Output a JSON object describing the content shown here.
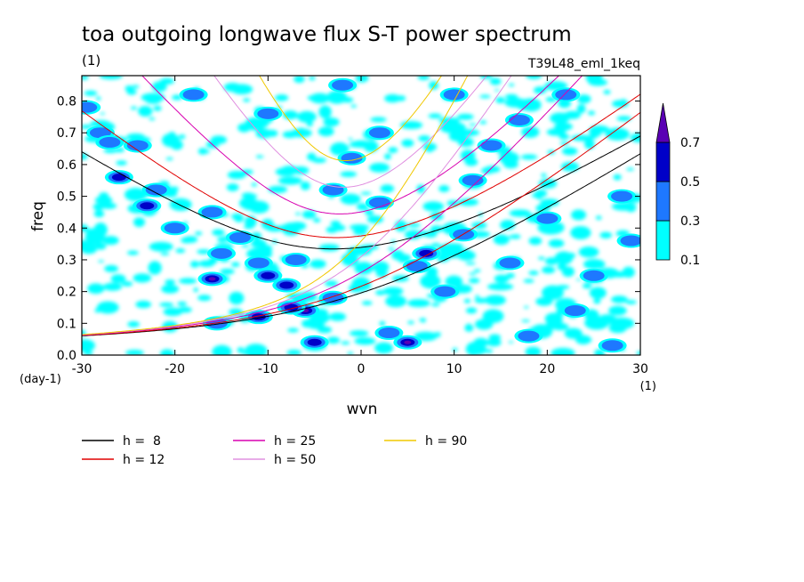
{
  "chart_data": {
    "type": "heatmap",
    "title": "toa outgoing longwave flux S-T power spectrum",
    "subtitle_left": "(1)",
    "subtitle_right": "T39L48_eml_1keq",
    "xlabel": "wvn",
    "ylabel": "freq",
    "x_unit": "(1)",
    "y_unit": "(day-1)",
    "xlim": [
      -30,
      30
    ],
    "ylim": [
      0,
      0.88
    ],
    "x_ticks": [
      -30,
      -20,
      -10,
      0,
      10,
      20,
      30
    ],
    "x_tick_labels": [
      "-30",
      "-20",
      "-10",
      "0",
      "10",
      "20",
      "30"
    ],
    "y_ticks": [
      0,
      0.1,
      0.2,
      0.3,
      0.4,
      0.5,
      0.6,
      0.7,
      0.8
    ],
    "y_tick_labels": [
      "0.0",
      "0.1",
      "0.2",
      "0.3",
      "0.4",
      "0.5",
      "0.6",
      "0.7",
      "0.8"
    ],
    "colorbar": {
      "levels": [
        0.1,
        0.3,
        0.5,
        0.7
      ],
      "labels": [
        "0.1",
        "0.3",
        "0.5",
        "0.7"
      ],
      "colors": [
        "#00ffff",
        "#1e78ff",
        "#0000c8",
        "#5a00b4"
      ],
      "extend": "max"
    },
    "blobs": [
      {
        "x": -29.5,
        "y": 0.78,
        "level": 1
      },
      {
        "x": -28,
        "y": 0.7,
        "level": 1
      },
      {
        "x": -27,
        "y": 0.67,
        "level": 1
      },
      {
        "x": -26,
        "y": 0.56,
        "level": 2
      },
      {
        "x": -24,
        "y": 0.66,
        "level": 1
      },
      {
        "x": -23,
        "y": 0.47,
        "level": 2
      },
      {
        "x": -22,
        "y": 0.52,
        "level": 1
      },
      {
        "x": -20,
        "y": 0.4,
        "level": 1
      },
      {
        "x": -16,
        "y": 0.45,
        "level": 1
      },
      {
        "x": -16,
        "y": 0.24,
        "level": 3
      },
      {
        "x": -15,
        "y": 0.32,
        "level": 1
      },
      {
        "x": -15.5,
        "y": 0.1,
        "level": 1
      },
      {
        "x": -13,
        "y": 0.37,
        "level": 1
      },
      {
        "x": -11,
        "y": 0.29,
        "level": 1
      },
      {
        "x": -10,
        "y": 0.25,
        "level": 2
      },
      {
        "x": -8,
        "y": 0.22,
        "level": 2
      },
      {
        "x": -7,
        "y": 0.3,
        "level": 1
      },
      {
        "x": -6,
        "y": 0.14,
        "level": 3
      },
      {
        "x": -7.5,
        "y": 0.15,
        "level": 2
      },
      {
        "x": -11,
        "y": 0.12,
        "level": 2
      },
      {
        "x": -5,
        "y": 0.04,
        "level": 2
      },
      {
        "x": -3,
        "y": 0.18,
        "level": 1
      },
      {
        "x": -3,
        "y": 0.52,
        "level": 1
      },
      {
        "x": -1,
        "y": 0.62,
        "level": 1
      },
      {
        "x": 2,
        "y": 0.48,
        "level": 1
      },
      {
        "x": 3,
        "y": 0.07,
        "level": 1
      },
      {
        "x": 5,
        "y": 0.04,
        "level": 3
      },
      {
        "x": 6,
        "y": 0.28,
        "level": 1
      },
      {
        "x": 7,
        "y": 0.32,
        "level": 2
      },
      {
        "x": 9,
        "y": 0.2,
        "level": 1
      },
      {
        "x": 11,
        "y": 0.38,
        "level": 1
      },
      {
        "x": 12,
        "y": 0.55,
        "level": 1
      },
      {
        "x": 14,
        "y": 0.66,
        "level": 1
      },
      {
        "x": 16,
        "y": 0.29,
        "level": 1
      },
      {
        "x": 18,
        "y": 0.06,
        "level": 1
      },
      {
        "x": 20,
        "y": 0.43,
        "level": 1
      },
      {
        "x": 23,
        "y": 0.14,
        "level": 1
      },
      {
        "x": 25,
        "y": 0.25,
        "level": 1
      },
      {
        "x": 27,
        "y": 0.03,
        "level": 1
      },
      {
        "x": 28,
        "y": 0.5,
        "level": 1
      },
      {
        "x": 29,
        "y": 0.36,
        "level": 1
      },
      {
        "x": -18,
        "y": 0.82,
        "level": 1
      },
      {
        "x": -10,
        "y": 0.76,
        "level": 1
      },
      {
        "x": 2,
        "y": 0.7,
        "level": 1
      },
      {
        "x": -2,
        "y": 0.85,
        "level": 1
      },
      {
        "x": 10,
        "y": 0.82,
        "level": 1
      },
      {
        "x": 17,
        "y": 0.74,
        "level": 1
      },
      {
        "x": 22,
        "y": 0.82,
        "level": 1
      }
    ],
    "series": [
      {
        "name": "h =  8",
        "h": 8,
        "color": "#000000"
      },
      {
        "name": "h = 12",
        "h": 12,
        "color": "#e00000"
      },
      {
        "name": "h = 25",
        "h": 25,
        "color": "#d800b0"
      },
      {
        "name": "h = 50",
        "h": 50,
        "color": "#e090e0"
      },
      {
        "name": "h = 90",
        "h": 90,
        "color": "#f0c800"
      }
    ]
  }
}
